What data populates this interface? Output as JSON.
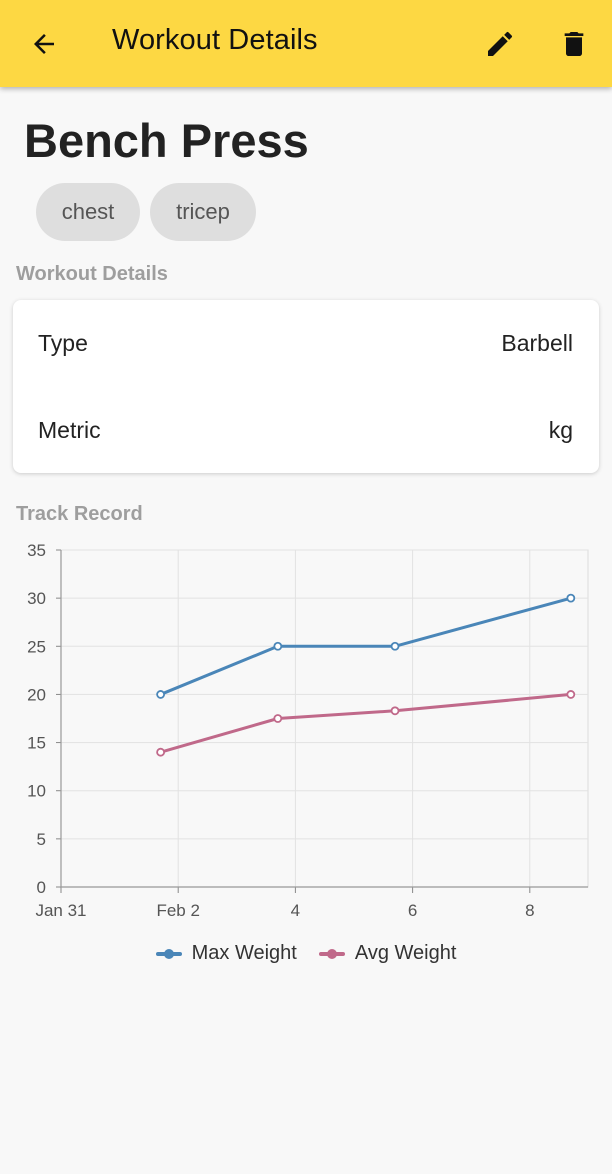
{
  "appbar": {
    "title": "Workout Details",
    "back_icon": "arrow-left-icon",
    "edit_icon": "pencil-icon",
    "delete_icon": "trash-icon",
    "background": "#fdd843"
  },
  "exercise": {
    "name": "Bench Press",
    "tags": [
      "chest",
      "tricep"
    ]
  },
  "details_section": {
    "heading": "Workout Details",
    "rows": [
      {
        "label": "Type",
        "value": "Barbell"
      },
      {
        "label": "Metric",
        "value": "kg"
      }
    ]
  },
  "track_section": {
    "heading": "Track Record"
  },
  "chart_data": {
    "type": "line",
    "x_tick_labels": [
      "Jan 31",
      "Feb 2",
      "4",
      "6",
      "8"
    ],
    "y_ticks": [
      0,
      5,
      10,
      15,
      20,
      25,
      30,
      35
    ],
    "ylim": [
      0,
      35
    ],
    "grid": true,
    "legend_position": "bottom",
    "series": [
      {
        "name": "Max Weight",
        "color": "#4a86b8",
        "points": [
          {
            "x": "Feb 1.7",
            "y": 20
          },
          {
            "x": "Feb 3.7",
            "y": 25
          },
          {
            "x": "Feb 5.7",
            "y": 25
          },
          {
            "x": "Feb 8.7",
            "y": 30
          }
        ]
      },
      {
        "name": "Avg Weight",
        "color": "#c0698a",
        "points": [
          {
            "x": "Feb 1.7",
            "y": 14
          },
          {
            "x": "Feb 3.7",
            "y": 17.5
          },
          {
            "x": "Feb 5.7",
            "y": 18.3
          },
          {
            "x": "Feb 8.7",
            "y": 20
          }
        ]
      }
    ]
  }
}
